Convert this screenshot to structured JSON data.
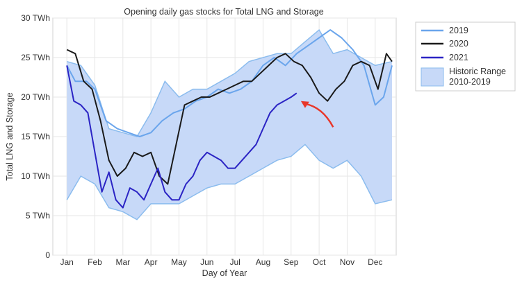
{
  "chart_data": {
    "type": "line",
    "title": "Opening daily gas stocks for Total LNG and Storage",
    "xlabel": "Day of Year",
    "ylabel": "Total LNG and Storage",
    "x_ticks": [
      "Jan",
      "Feb",
      "Mar",
      "Apr",
      "May",
      "Jun",
      "Jul",
      "Aug",
      "Sep",
      "Oct",
      "Nov",
      "Dec"
    ],
    "y_ticks": [
      "0",
      "5 TWh",
      "10 TWh",
      "15 TWh",
      "20 TWh",
      "25 TWh",
      "30 TWh"
    ],
    "ylim": [
      0,
      30
    ],
    "grid": true,
    "legend_position": "outside-right",
    "x_unit": "month (fractional)",
    "range": {
      "name": "Historic Range 2010-2019",
      "color": "#c7d9f8",
      "edge_color": "#8bbcee",
      "x": [
        1,
        1.5,
        2,
        2.5,
        3,
        3.5,
        4,
        4.5,
        5,
        5.5,
        6,
        6.5,
        7,
        7.5,
        8,
        8.5,
        9,
        9.5,
        10,
        10.5,
        11,
        11.5,
        12,
        12.6
      ],
      "low": [
        7,
        10,
        9,
        6,
        5.5,
        4.5,
        6.5,
        6.5,
        6.5,
        7.5,
        8.5,
        9,
        9,
        10,
        11,
        12,
        12.5,
        14,
        12,
        11,
        12,
        10,
        6.5,
        7
      ],
      "high": [
        24.5,
        24,
        21.5,
        16,
        15.5,
        15,
        18,
        22,
        20,
        21,
        21,
        22,
        23,
        24.5,
        25,
        25.5,
        25.5,
        27,
        28.5,
        25.5,
        26,
        25,
        24,
        24.5
      ]
    },
    "series": [
      {
        "name": "2019",
        "color": "#6aa5ec",
        "x": [
          1,
          1.3,
          1.7,
          2,
          2.4,
          2.8,
          3.2,
          3.6,
          4,
          4.4,
          4.8,
          5.2,
          5.6,
          6,
          6.4,
          6.8,
          7.2,
          7.6,
          8,
          8.4,
          8.8,
          9.2,
          9.6,
          10,
          10.4,
          10.8,
          11.2,
          11.6,
          12,
          12.3,
          12.6
        ],
        "values": [
          24,
          22,
          22,
          21,
          17,
          16,
          15.5,
          15,
          15.5,
          17,
          18,
          18.5,
          19.5,
          20,
          21,
          20.5,
          21,
          22,
          24,
          25,
          24,
          25.5,
          26.5,
          27.5,
          28.5,
          27.5,
          26,
          24,
          19,
          20,
          24
        ]
      },
      {
        "name": "2020",
        "color": "#1a1a1a",
        "x": [
          1,
          1.3,
          1.6,
          1.9,
          2.2,
          2.5,
          2.8,
          3.1,
          3.4,
          3.7,
          4,
          4.3,
          4.6,
          4.9,
          5.2,
          5.5,
          5.8,
          6.1,
          6.4,
          6.7,
          7,
          7.3,
          7.6,
          7.9,
          8.2,
          8.5,
          8.8,
          9.1,
          9.4,
          9.7,
          10,
          10.3,
          10.6,
          10.9,
          11.2,
          11.5,
          11.8,
          12.1,
          12.4,
          12.6
        ],
        "values": [
          26,
          25.5,
          22,
          21,
          17,
          12,
          10,
          11,
          13,
          12.5,
          13,
          10,
          9,
          14,
          19,
          19.5,
          20,
          20,
          20.5,
          21,
          21.5,
          22,
          22,
          23,
          24,
          25,
          25.5,
          24.5,
          24,
          22.5,
          20.5,
          19.5,
          21,
          22,
          24,
          24.5,
          24,
          21,
          25.5,
          24.5
        ]
      },
      {
        "name": "2021",
        "color": "#2b24c4",
        "x": [
          1,
          1.25,
          1.5,
          1.75,
          2,
          2.25,
          2.5,
          2.75,
          3,
          3.25,
          3.5,
          3.75,
          4,
          4.25,
          4.5,
          4.75,
          5,
          5.25,
          5.5,
          5.75,
          6,
          6.25,
          6.5,
          6.75,
          7,
          7.25,
          7.5,
          7.75,
          8,
          8.25,
          8.5,
          8.75,
          9,
          9.2
        ],
        "values": [
          24,
          19.5,
          19,
          18,
          13,
          8,
          10.5,
          7,
          6,
          8.5,
          8,
          7,
          9,
          11,
          8,
          7,
          7,
          9,
          10,
          12,
          13,
          12.5,
          12,
          11,
          11,
          12,
          13,
          14,
          16,
          18,
          19,
          19.5,
          20,
          20.5
        ]
      }
    ],
    "annotation": {
      "type": "arrow",
      "color": "#e8372a",
      "x_from": 10.5,
      "y_from": 16.2,
      "x_to": 9.35,
      "y_to": 19.5
    }
  }
}
